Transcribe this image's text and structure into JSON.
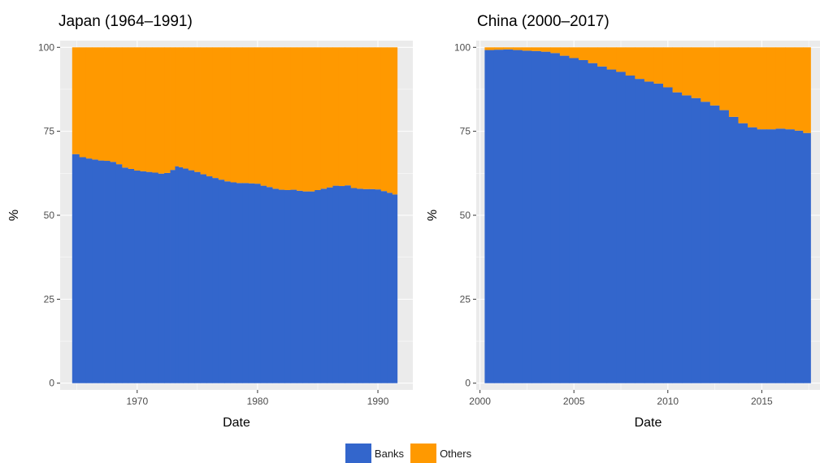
{
  "chart_data": [
    {
      "type": "area",
      "title": "Japan (1964–1991)",
      "xlabel": "Date",
      "ylabel": "%",
      "xlim": [
        1963.6,
        1992.9
      ],
      "ylim": [
        -2,
        102
      ],
      "x_ticks": [
        1970,
        1980,
        1990
      ],
      "y_ticks": [
        0,
        25,
        50,
        75,
        100
      ],
      "x_tick_labels": [
        "1970",
        "1980",
        "1990"
      ],
      "y_tick_labels": [
        "0",
        "25",
        "50",
        "75",
        "100"
      ],
      "x": [
        1964.9,
        1965.5,
        1966,
        1966.5,
        1967,
        1967.5,
        1968,
        1968.5,
        1969,
        1969.5,
        1970,
        1970.5,
        1971,
        1971.5,
        1972,
        1972.5,
        1973,
        1973.3,
        1973.6,
        1974,
        1974.5,
        1975,
        1975.5,
        1976,
        1976.5,
        1977,
        1977.5,
        1978,
        1978.5,
        1979,
        1979.5,
        1980,
        1980.5,
        1981,
        1981.5,
        1982,
        1982.5,
        1983,
        1983.5,
        1984,
        1984.5,
        1985,
        1985.5,
        1986,
        1986.5,
        1987,
        1987.5,
        1988,
        1988.5,
        1989,
        1989.5,
        1990,
        1990.5,
        1991,
        1991.4
      ],
      "series": [
        {
          "name": "Banks",
          "values": [
            68.2,
            67.3,
            66.9,
            66.6,
            66.3,
            66.2,
            65.9,
            65.2,
            64.2,
            63.8,
            63.3,
            63.1,
            62.9,
            62.7,
            62.4,
            62.6,
            63.5,
            64.6,
            64.3,
            63.9,
            63.4,
            62.9,
            62.2,
            61.6,
            61.1,
            60.6,
            60.1,
            59.8,
            59.6,
            59.6,
            59.5,
            59.4,
            58.8,
            58.4,
            57.9,
            57.6,
            57.5,
            57.6,
            57.3,
            57.1,
            57.1,
            57.5,
            57.9,
            58.3,
            58.8,
            58.7,
            58.9,
            58.1,
            57.9,
            57.8,
            57.8,
            57.7,
            57.2,
            56.7,
            56.2
          ]
        },
        {
          "name": "Others",
          "values": [
            31.8,
            32.7,
            33.1,
            33.4,
            33.7,
            33.8,
            34.1,
            34.8,
            35.8,
            36.2,
            36.7,
            36.9,
            37.1,
            37.3,
            37.6,
            37.4,
            36.5,
            35.4,
            35.7,
            36.1,
            36.6,
            37.1,
            37.8,
            38.4,
            38.9,
            39.4,
            39.9,
            40.2,
            40.4,
            40.4,
            40.5,
            40.6,
            41.2,
            41.6,
            42.1,
            42.4,
            42.5,
            42.4,
            42.7,
            42.9,
            42.9,
            42.5,
            42.1,
            41.7,
            41.2,
            41.3,
            41.1,
            41.9,
            42.1,
            42.2,
            42.2,
            42.3,
            42.8,
            43.3,
            43.8
          ]
        }
      ]
    },
    {
      "type": "area",
      "title": "China (2000–2017)",
      "xlabel": "Date",
      "ylabel": "%",
      "xlim": [
        1999.8,
        2018.1
      ],
      "ylim": [
        -2,
        102
      ],
      "x_ticks": [
        2000,
        2005,
        2010,
        2015
      ],
      "y_ticks": [
        0,
        25,
        50,
        75,
        100
      ],
      "x_tick_labels": [
        "2000",
        "2005",
        "2010",
        "2015"
      ],
      "y_tick_labels": [
        "0",
        "25",
        "50",
        "75",
        "100"
      ],
      "x": [
        2000.5,
        2001,
        2001.5,
        2002,
        2002.5,
        2003,
        2003.5,
        2004,
        2004.5,
        2005,
        2005.5,
        2006,
        2006.5,
        2007,
        2007.5,
        2008,
        2008.5,
        2009,
        2009.5,
        2010,
        2010.5,
        2011,
        2011.5,
        2012,
        2012.5,
        2013,
        2013.5,
        2014,
        2014.5,
        2015,
        2015.5,
        2016,
        2016.5,
        2017,
        2017.4
      ],
      "series": [
        {
          "name": "Banks",
          "values": [
            99.2,
            99.3,
            99.4,
            99.2,
            99.0,
            98.9,
            98.7,
            98.3,
            97.5,
            96.8,
            96.2,
            95.3,
            94.3,
            93.4,
            92.7,
            91.6,
            90.6,
            89.8,
            89.2,
            88.1,
            86.6,
            85.7,
            84.9,
            83.8,
            82.7,
            81.3,
            79.3,
            77.4,
            76.2,
            75.6,
            75.6,
            75.8,
            75.6,
            75.2,
            74.5
          ]
        },
        {
          "name": "Others",
          "values": [
            0.8,
            0.7,
            0.6,
            0.8,
            1.0,
            1.1,
            1.3,
            1.7,
            2.5,
            3.2,
            3.8,
            4.7,
            5.7,
            6.6,
            7.3,
            8.4,
            9.4,
            10.2,
            10.8,
            11.9,
            13.4,
            14.3,
            15.1,
            16.2,
            17.3,
            18.7,
            20.7,
            22.6,
            23.8,
            24.4,
            24.4,
            24.2,
            24.4,
            24.8,
            25.5
          ]
        }
      ]
    }
  ],
  "legend": {
    "position": "bottom",
    "items": [
      {
        "label": "Banks",
        "color": "#3366CC"
      },
      {
        "label": "Others",
        "color": "#FF9900"
      }
    ]
  },
  "colors": {
    "panel_bg": "#EBEBEB",
    "grid_major": "#FFFFFF",
    "banks": "#3366CC",
    "others": "#FF9900"
  }
}
